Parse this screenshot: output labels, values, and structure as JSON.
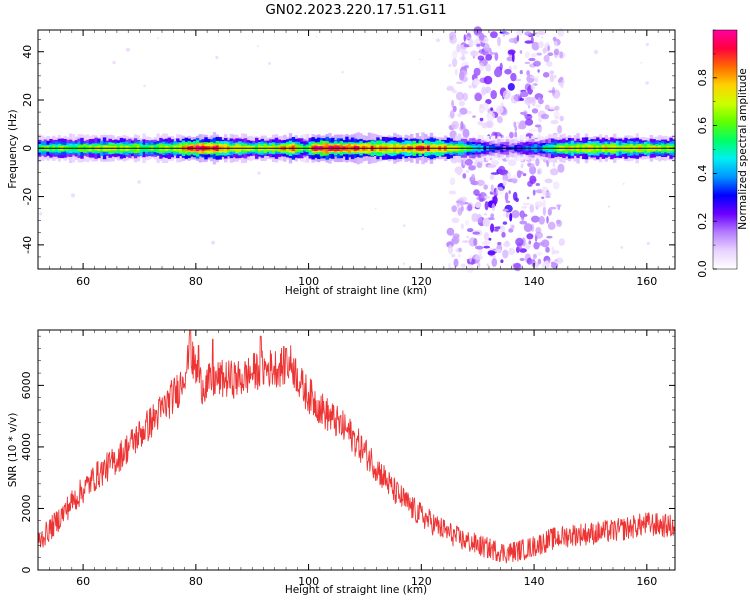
{
  "figure_title": "GN02.2023.220.17.51.G11",
  "chart_data": [
    {
      "type": "heatmap",
      "xlabel": "Height of straight line (km)",
      "ylabel": "Frequency (Hz)",
      "xlim": [
        52,
        165
      ],
      "ylim": [
        -50,
        49
      ],
      "x_ticks": [
        60,
        80,
        100,
        120,
        140,
        160
      ],
      "y_ticks": [
        -40,
        -20,
        0,
        20,
        40
      ],
      "grid": false,
      "colorbar": {
        "label": "Normalized spectral amplitude",
        "range": [
          0,
          1
        ],
        "ticks": [
          "0.0",
          "0.2",
          "0.4",
          "0.6",
          "0.8"
        ],
        "colormap": [
          "#ffffff",
          "#e9d3ff",
          "#b47cff",
          "#6a00ff",
          "#0000ff",
          "#0096ff",
          "#00f0f0",
          "#00ff66",
          "#5fff00",
          "#ccff00",
          "#ffd200",
          "#ff6a00",
          "#ff0040",
          "#ff00a0"
        ]
      },
      "band": {
        "center_hz": 0,
        "amplitude_by_height": [
          {
            "x": 52,
            "v": 0.55
          },
          {
            "x": 56,
            "v": 0.6
          },
          {
            "x": 60,
            "v": 0.62
          },
          {
            "x": 64,
            "v": 0.7
          },
          {
            "x": 68,
            "v": 0.66
          },
          {
            "x": 72,
            "v": 0.6
          },
          {
            "x": 76,
            "v": 0.7
          },
          {
            "x": 80,
            "v": 0.95
          },
          {
            "x": 83,
            "v": 0.9
          },
          {
            "x": 86,
            "v": 0.72
          },
          {
            "x": 90,
            "v": 0.65
          },
          {
            "x": 94,
            "v": 0.7
          },
          {
            "x": 97,
            "v": 0.85
          },
          {
            "x": 99,
            "v": 0.5
          },
          {
            "x": 101,
            "v": 0.95
          },
          {
            "x": 105,
            "v": 0.9
          },
          {
            "x": 110,
            "v": 0.85
          },
          {
            "x": 115,
            "v": 0.8
          },
          {
            "x": 120,
            "v": 0.88
          },
          {
            "x": 125,
            "v": 0.75
          },
          {
            "x": 128,
            "v": 0.55
          },
          {
            "x": 132,
            "v": 0.3
          },
          {
            "x": 135,
            "v": 0.25
          },
          {
            "x": 138,
            "v": 0.3
          },
          {
            "x": 141,
            "v": 0.45
          },
          {
            "x": 145,
            "v": 0.7
          },
          {
            "x": 150,
            "v": 0.72
          },
          {
            "x": 155,
            "v": 0.7
          },
          {
            "x": 160,
            "v": 0.7
          },
          {
            "x": 165,
            "v": 0.65
          }
        ]
      },
      "scatter_region": {
        "x_min": 125,
        "x_max": 145,
        "peak_x": 135,
        "amplitude_max": 0.25
      }
    },
    {
      "type": "line",
      "xlabel": "Height of straight line (km)",
      "ylabel": "SNR (10 * v/v)",
      "xlim": [
        52,
        165
      ],
      "ylim": [
        0,
        7800
      ],
      "x_ticks": [
        60,
        80,
        100,
        120,
        140,
        160
      ],
      "y_ticks": [
        0,
        2000,
        4000,
        6000
      ],
      "grid": false,
      "color": "#ee3333",
      "series": [
        {
          "envelope": [
            {
              "x": 52,
              "y": 900
            },
            {
              "x": 55,
              "y": 1500
            },
            {
              "x": 58,
              "y": 2200
            },
            {
              "x": 62,
              "y": 3000
            },
            {
              "x": 66,
              "y": 3600
            },
            {
              "x": 70,
              "y": 4400
            },
            {
              "x": 74,
              "y": 5200
            },
            {
              "x": 77,
              "y": 5900
            },
            {
              "x": 79,
              "y": 7000
            },
            {
              "x": 81,
              "y": 6000
            },
            {
              "x": 84,
              "y": 6200
            },
            {
              "x": 88,
              "y": 6200
            },
            {
              "x": 91,
              "y": 6500
            },
            {
              "x": 95,
              "y": 6600
            },
            {
              "x": 97,
              "y": 6700
            },
            {
              "x": 99,
              "y": 5900
            },
            {
              "x": 103,
              "y": 5100
            },
            {
              "x": 107,
              "y": 4500
            },
            {
              "x": 111,
              "y": 3600
            },
            {
              "x": 115,
              "y": 2600
            },
            {
              "x": 119,
              "y": 1900
            },
            {
              "x": 123,
              "y": 1400
            },
            {
              "x": 127,
              "y": 1000
            },
            {
              "x": 131,
              "y": 750
            },
            {
              "x": 135,
              "y": 550
            },
            {
              "x": 139,
              "y": 700
            },
            {
              "x": 143,
              "y": 1000
            },
            {
              "x": 147,
              "y": 1150
            },
            {
              "x": 151,
              "y": 1200
            },
            {
              "x": 155,
              "y": 1300
            },
            {
              "x": 160,
              "y": 1500
            },
            {
              "x": 165,
              "y": 1400
            }
          ],
          "noise_amplitude": 700,
          "spikes": [
            {
              "x": 79,
              "y": 7800
            },
            {
              "x": 80.5,
              "y": 7300
            },
            {
              "x": 83,
              "y": 7500
            },
            {
              "x": 91.5,
              "y": 7600
            },
            {
              "x": 96,
              "y": 7200
            }
          ]
        }
      ]
    }
  ]
}
